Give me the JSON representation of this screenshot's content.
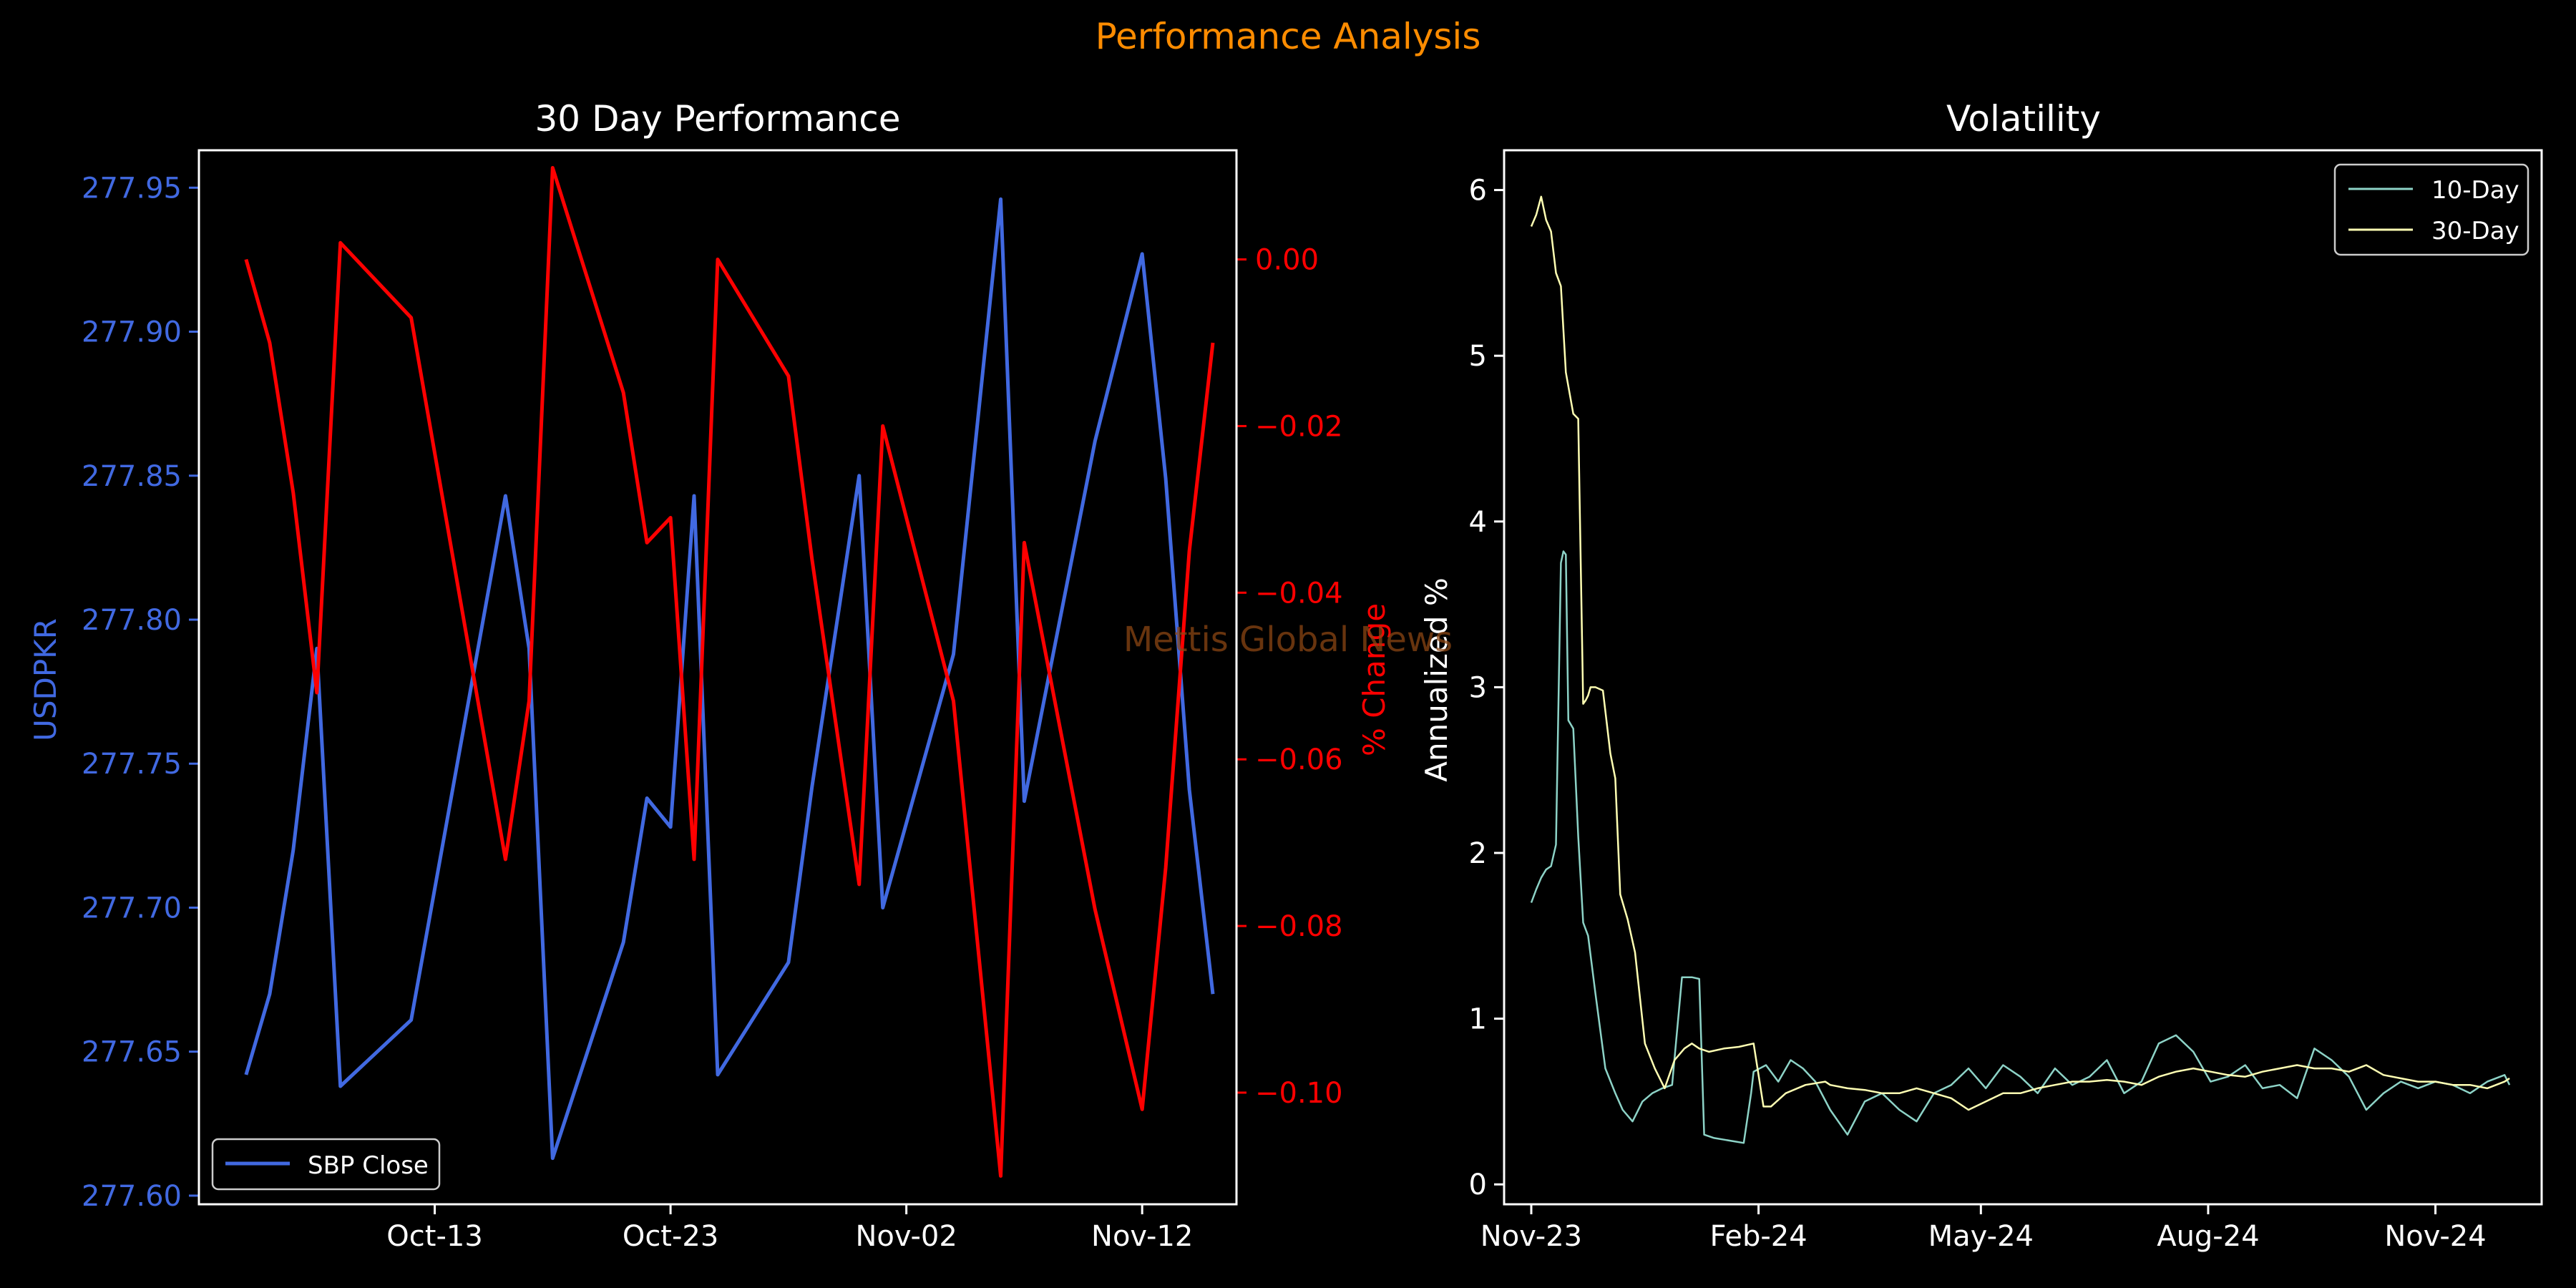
{
  "figure": {
    "suptitle": "Performance Analysis",
    "watermark": "Mettis Global News",
    "colors": {
      "background": "#000000",
      "suptitle": "#ff8c00",
      "watermark": "#8b4513",
      "price": "#4169e1",
      "pct": "#ff0000",
      "vol10": "#8dd3c7",
      "vol30": "#ffffb3",
      "axes": "#ffffff"
    }
  },
  "chart_data": [
    {
      "type": "line",
      "title": "30 Day Performance",
      "xlabel": "",
      "ylabel": "USDPKR",
      "y2label": "% Change",
      "xlim": [
        "2024-10-03",
        "2024-11-16"
      ],
      "ylim": [
        277.597,
        277.963
      ],
      "y2lim": [
        -0.1134,
        0.0131
      ],
      "x_ticks": [
        {
          "date": "2024-10-13",
          "label": "Oct-13"
        },
        {
          "date": "2024-10-23",
          "label": "Oct-23"
        },
        {
          "date": "2024-11-02",
          "label": "Nov-02"
        },
        {
          "date": "2024-11-12",
          "label": "Nov-12"
        }
      ],
      "y_ticks": [
        {
          "value": 277.6,
          "label": "277.60"
        },
        {
          "value": 277.65,
          "label": "277.65"
        },
        {
          "value": 277.7,
          "label": "277.70"
        },
        {
          "value": 277.75,
          "label": "277.75"
        },
        {
          "value": 277.8,
          "label": "277.80"
        },
        {
          "value": 277.85,
          "label": "277.85"
        },
        {
          "value": 277.9,
          "label": "277.90"
        },
        {
          "value": 277.95,
          "label": "277.95"
        }
      ],
      "y2_ticks": [
        {
          "value": 0.0,
          "label": "0.00"
        },
        {
          "value": -0.02,
          "label": "−0.02"
        },
        {
          "value": -0.04,
          "label": "−0.04"
        },
        {
          "value": -0.06,
          "label": "−0.06"
        },
        {
          "value": -0.08,
          "label": "−0.08"
        },
        {
          "value": -0.1,
          "label": "−0.10"
        }
      ],
      "legend": {
        "position": "lower-left",
        "entries": [
          "SBP Close"
        ]
      },
      "series": [
        {
          "name": "SBP Close",
          "axis": "left",
          "x": [
            "2024-10-05",
            "2024-10-06",
            "2024-10-07",
            "2024-10-08",
            "2024-10-09",
            "2024-10-12",
            "2024-10-16",
            "2024-10-17",
            "2024-10-18",
            "2024-10-21",
            "2024-10-22",
            "2024-10-23",
            "2024-10-24",
            "2024-10-25",
            "2024-10-28",
            "2024-10-29",
            "2024-10-31",
            "2024-11-01",
            "2024-11-04",
            "2024-11-06",
            "2024-11-07",
            "2024-11-10",
            "2024-11-12",
            "2024-11-13",
            "2024-11-14",
            "2024-11-15"
          ],
          "values": [
            277.642,
            277.67,
            277.72,
            277.79,
            277.638,
            277.661,
            277.843,
            277.79,
            277.613,
            277.688,
            277.738,
            277.728,
            277.843,
            277.642,
            277.681,
            277.742,
            277.85,
            277.7,
            277.788,
            277.946,
            277.737,
            277.862,
            277.927,
            277.849,
            277.741,
            277.67
          ]
        },
        {
          "name": "% Change",
          "axis": "right",
          "x": [
            "2024-10-05",
            "2024-10-06",
            "2024-10-07",
            "2024-10-08",
            "2024-10-09",
            "2024-10-12",
            "2024-10-16",
            "2024-10-17",
            "2024-10-18",
            "2024-10-21",
            "2024-10-22",
            "2024-10-23",
            "2024-10-24",
            "2024-10-25",
            "2024-10-28",
            "2024-10-29",
            "2024-10-31",
            "2024-11-01",
            "2024-11-04",
            "2024-11-06",
            "2024-11-07",
            "2024-11-10",
            "2024-11-12",
            "2024-11-13",
            "2024-11-14",
            "2024-11-15"
          ],
          "values": [
            0.0,
            -0.01,
            -0.028,
            -0.052,
            0.002,
            -0.007,
            -0.072,
            -0.053,
            0.011,
            -0.016,
            -0.034,
            -0.031,
            -0.072,
            0.0,
            -0.014,
            -0.036,
            -0.075,
            -0.02,
            -0.053,
            -0.11,
            -0.034,
            -0.078,
            -0.102,
            -0.073,
            -0.035,
            -0.01
          ]
        }
      ]
    },
    {
      "type": "line",
      "title": "Volatility",
      "xlabel": "",
      "ylabel": "Annualized %",
      "xlim": [
        "2023-10-21",
        "2024-12-14"
      ],
      "ylim": [
        -0.12,
        6.24
      ],
      "x_ticks": [
        {
          "date": "2023-11-01",
          "label": "Nov-23"
        },
        {
          "date": "2024-02-01",
          "label": "Feb-24"
        },
        {
          "date": "2024-05-01",
          "label": "May-24"
        },
        {
          "date": "2024-08-01",
          "label": "Aug-24"
        },
        {
          "date": "2024-11-01",
          "label": "Nov-24"
        }
      ],
      "y_ticks": [
        {
          "value": 0,
          "label": "0"
        },
        {
          "value": 1,
          "label": "1"
        },
        {
          "value": 2,
          "label": "2"
        },
        {
          "value": 3,
          "label": "3"
        },
        {
          "value": 4,
          "label": "4"
        },
        {
          "value": 5,
          "label": "5"
        },
        {
          "value": 6,
          "label": "6"
        }
      ],
      "legend": {
        "position": "upper-right",
        "entries": [
          "10-Day",
          "30-Day"
        ]
      },
      "series": [
        {
          "name": "10-Day",
          "x": [
            "2023-11-01",
            "2023-11-03",
            "2023-11-05",
            "2023-11-07",
            "2023-11-09",
            "2023-11-11",
            "2023-11-13",
            "2023-11-14",
            "2023-11-15",
            "2023-11-16",
            "2023-11-18",
            "2023-11-20",
            "2023-11-22",
            "2023-11-24",
            "2023-11-27",
            "2023-12-01",
            "2023-12-05",
            "2023-12-08",
            "2023-12-12",
            "2023-12-16",
            "2023-12-20",
            "2023-12-24",
            "2023-12-28",
            "2024-01-01",
            "2024-01-05",
            "2024-01-08",
            "2024-01-10",
            "2024-01-14",
            "2024-01-18",
            "2024-01-22",
            "2024-01-26",
            "2024-01-29",
            "2024-01-30",
            "2024-02-04",
            "2024-02-09",
            "2024-02-14",
            "2024-02-19",
            "2024-02-24",
            "2024-03-01",
            "2024-03-08",
            "2024-03-15",
            "2024-03-22",
            "2024-03-29",
            "2024-04-05",
            "2024-04-12",
            "2024-04-19",
            "2024-04-26",
            "2024-05-03",
            "2024-05-10",
            "2024-05-17",
            "2024-05-24",
            "2024-05-31",
            "2024-06-07",
            "2024-06-14",
            "2024-06-21",
            "2024-06-28",
            "2024-07-05",
            "2024-07-12",
            "2024-07-19",
            "2024-07-26",
            "2024-08-02",
            "2024-08-09",
            "2024-08-16",
            "2024-08-23",
            "2024-08-30",
            "2024-09-06",
            "2024-09-13",
            "2024-09-20",
            "2024-09-27",
            "2024-10-04",
            "2024-10-11",
            "2024-10-18",
            "2024-10-25",
            "2024-11-01",
            "2024-11-08",
            "2024-11-15",
            "2024-11-22",
            "2024-11-29",
            "2024-12-01"
          ],
          "values": [
            1.7,
            1.78,
            1.85,
            1.9,
            1.92,
            2.05,
            3.75,
            3.82,
            3.8,
            2.8,
            2.75,
            2.1,
            1.58,
            1.5,
            1.15,
            0.7,
            0.55,
            0.45,
            0.38,
            0.5,
            0.55,
            0.58,
            0.6,
            1.25,
            1.25,
            1.24,
            0.3,
            0.28,
            0.27,
            0.26,
            0.25,
            0.55,
            0.68,
            0.72,
            0.62,
            0.75,
            0.7,
            0.62,
            0.45,
            0.3,
            0.5,
            0.55,
            0.45,
            0.38,
            0.55,
            0.6,
            0.7,
            0.58,
            0.72,
            0.65,
            0.55,
            0.7,
            0.6,
            0.65,
            0.75,
            0.55,
            0.62,
            0.85,
            0.9,
            0.8,
            0.62,
            0.65,
            0.72,
            0.58,
            0.6,
            0.52,
            0.82,
            0.75,
            0.65,
            0.45,
            0.55,
            0.62,
            0.58,
            0.62,
            0.6,
            0.55,
            0.62,
            0.66,
            0.6
          ]
        },
        {
          "name": "30-Day",
          "x": [
            "2023-11-01",
            "2023-11-03",
            "2023-11-05",
            "2023-11-07",
            "2023-11-09",
            "2023-11-11",
            "2023-11-13",
            "2023-11-15",
            "2023-11-18",
            "2023-11-20",
            "2023-11-22",
            "2023-11-23",
            "2023-11-24",
            "2023-11-25",
            "2023-11-27",
            "2023-11-30",
            "2023-12-03",
            "2023-12-05",
            "2023-12-07",
            "2023-12-10",
            "2023-12-13",
            "2023-12-17",
            "2023-12-21",
            "2023-12-25",
            "2023-12-29",
            "2024-01-02",
            "2024-01-05",
            "2024-01-08",
            "2024-01-12",
            "2024-01-18",
            "2024-01-24",
            "2024-01-30",
            "2024-02-03",
            "2024-02-06",
            "2024-02-12",
            "2024-02-20",
            "2024-02-28",
            "2024-03-01",
            "2024-03-08",
            "2024-03-15",
            "2024-03-22",
            "2024-03-29",
            "2024-04-05",
            "2024-04-12",
            "2024-04-19",
            "2024-04-26",
            "2024-05-03",
            "2024-05-10",
            "2024-05-17",
            "2024-05-24",
            "2024-05-31",
            "2024-06-07",
            "2024-06-14",
            "2024-06-21",
            "2024-06-28",
            "2024-07-05",
            "2024-07-12",
            "2024-07-19",
            "2024-07-26",
            "2024-08-02",
            "2024-08-09",
            "2024-08-16",
            "2024-08-23",
            "2024-08-30",
            "2024-09-06",
            "2024-09-13",
            "2024-09-20",
            "2024-09-27",
            "2024-10-04",
            "2024-10-11",
            "2024-10-18",
            "2024-10-25",
            "2024-11-01",
            "2024-11-08",
            "2024-11-15",
            "2024-11-22",
            "2024-11-29",
            "2024-12-01"
          ],
          "values": [
            5.78,
            5.85,
            5.96,
            5.82,
            5.75,
            5.5,
            5.42,
            4.9,
            4.65,
            4.62,
            2.9,
            2.92,
            2.95,
            3.0,
            3.0,
            2.98,
            2.6,
            2.45,
            1.75,
            1.6,
            1.4,
            0.85,
            0.7,
            0.58,
            0.75,
            0.82,
            0.85,
            0.82,
            0.8,
            0.82,
            0.83,
            0.85,
            0.47,
            0.47,
            0.55,
            0.6,
            0.62,
            0.6,
            0.58,
            0.57,
            0.55,
            0.55,
            0.58,
            0.55,
            0.52,
            0.45,
            0.5,
            0.55,
            0.55,
            0.58,
            0.6,
            0.62,
            0.62,
            0.63,
            0.62,
            0.6,
            0.65,
            0.68,
            0.7,
            0.68,
            0.66,
            0.65,
            0.68,
            0.7,
            0.72,
            0.7,
            0.7,
            0.68,
            0.72,
            0.66,
            0.64,
            0.62,
            0.62,
            0.6,
            0.6,
            0.58,
            0.62,
            0.64
          ]
        }
      ]
    }
  ]
}
